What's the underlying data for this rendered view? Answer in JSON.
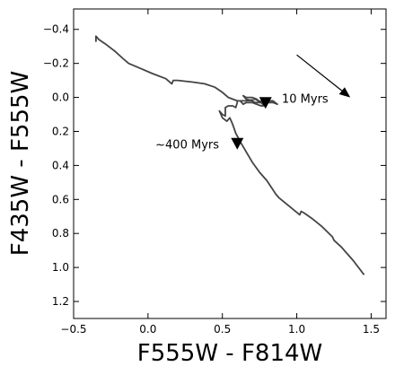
{
  "chart_data": {
    "type": "line",
    "title": "",
    "xlabel": "F555W - F814W",
    "ylabel": "F435W - F555W",
    "xlim": [
      -0.5,
      1.6
    ],
    "ylim": [
      1.3,
      -0.52
    ],
    "y_inverted": true,
    "grid": false,
    "legend": "none",
    "x_ticks": [
      {
        "value": -0.5,
        "label": "−0.5"
      },
      {
        "value": 0.0,
        "label": "0.0"
      },
      {
        "value": 0.5,
        "label": "0.5"
      },
      {
        "value": 1.0,
        "label": "1.0"
      },
      {
        "value": 1.5,
        "label": "1.5"
      }
    ],
    "y_ticks": [
      {
        "value": -0.4,
        "label": "−0.4"
      },
      {
        "value": -0.2,
        "label": "−0.2"
      },
      {
        "value": 0.0,
        "label": "0.0"
      },
      {
        "value": 0.2,
        "label": "0.2"
      },
      {
        "value": 0.4,
        "label": "0.4"
      },
      {
        "value": 0.6,
        "label": "0.6"
      },
      {
        "value": 0.8,
        "label": "0.8"
      },
      {
        "value": 1.0,
        "label": "1.0"
      },
      {
        "value": 1.2,
        "label": "1.2"
      }
    ],
    "series": [
      {
        "color": "#444444",
        "points": [
          [
            1.45,
            1.04
          ],
          [
            1.38,
            0.96
          ],
          [
            1.3,
            0.88
          ],
          [
            1.25,
            0.84
          ],
          [
            1.24,
            0.82
          ],
          [
            1.17,
            0.76
          ],
          [
            1.1,
            0.71
          ],
          [
            1.05,
            0.68
          ],
          [
            1.03,
            0.67
          ],
          [
            1.02,
            0.69
          ],
          [
            0.95,
            0.64
          ],
          [
            0.88,
            0.59
          ],
          [
            0.86,
            0.57
          ],
          [
            0.8,
            0.49
          ],
          [
            0.75,
            0.44
          ],
          [
            0.7,
            0.38
          ],
          [
            0.66,
            0.32
          ],
          [
            0.62,
            0.26
          ],
          [
            0.59,
            0.21
          ],
          [
            0.57,
            0.16
          ],
          [
            0.55,
            0.12
          ],
          [
            0.53,
            0.14
          ],
          [
            0.5,
            0.12
          ],
          [
            0.49,
            0.1
          ],
          [
            0.48,
            0.08
          ],
          [
            0.5,
            0.1
          ],
          [
            0.52,
            0.11
          ],
          [
            0.52,
            0.06
          ],
          [
            0.54,
            0.05
          ],
          [
            0.57,
            0.05
          ],
          [
            0.59,
            0.06
          ],
          [
            0.6,
            0.03
          ],
          [
            0.6,
            0.02
          ],
          [
            0.62,
            0.02
          ],
          [
            0.64,
            0.04
          ],
          [
            0.66,
            0.03
          ],
          [
            0.7,
            0.03
          ],
          [
            0.73,
            0.04
          ],
          [
            0.76,
            0.05
          ],
          [
            0.78,
            0.05
          ],
          [
            0.76,
            0.03
          ],
          [
            0.73,
            0.01
          ],
          [
            0.7,
            0.0
          ],
          [
            0.66,
            0.0
          ],
          [
            0.64,
            -0.01
          ],
          [
            0.66,
            0.01
          ],
          [
            0.7,
            0.02
          ],
          [
            0.72,
            0.03
          ],
          [
            0.75,
            0.03
          ],
          [
            0.78,
            0.03
          ],
          [
            0.8,
            0.02
          ],
          [
            0.84,
            0.02
          ],
          [
            0.87,
            0.04
          ],
          [
            0.84,
            0.03
          ],
          [
            0.8,
            0.03
          ],
          [
            0.74,
            0.02
          ],
          [
            0.72,
            0.01
          ],
          [
            0.66,
            0.02
          ],
          [
            0.6,
            0.02
          ],
          [
            0.54,
            0.0
          ],
          [
            0.5,
            -0.03
          ],
          [
            0.45,
            -0.06
          ],
          [
            0.38,
            -0.08
          ],
          [
            0.3,
            -0.09
          ],
          [
            0.2,
            -0.1
          ],
          [
            0.17,
            -0.1
          ],
          [
            0.16,
            -0.08
          ],
          [
            0.12,
            -0.11
          ],
          [
            0.03,
            -0.14
          ],
          [
            -0.05,
            -0.17
          ],
          [
            -0.13,
            -0.2
          ],
          [
            -0.17,
            -0.23
          ],
          [
            -0.22,
            -0.27
          ],
          [
            -0.28,
            -0.31
          ],
          [
            -0.33,
            -0.34
          ],
          [
            -0.35,
            -0.36
          ],
          [
            -0.35,
            -0.33
          ]
        ]
      }
    ],
    "annotations": [
      {
        "text": "10 Myrs",
        "x": 0.9,
        "y": 0.01
      },
      {
        "text": "~400 Myrs",
        "x": 0.05,
        "y": 0.28
      }
    ],
    "markers": [
      {
        "shape": "triangle-down",
        "x": 0.79,
        "y": 0.03
      },
      {
        "shape": "triangle-down",
        "x": 0.6,
        "y": 0.27
      }
    ],
    "arrows": [
      {
        "from": [
          1.0,
          -0.25
        ],
        "to": [
          1.36,
          0.0
        ]
      }
    ]
  }
}
